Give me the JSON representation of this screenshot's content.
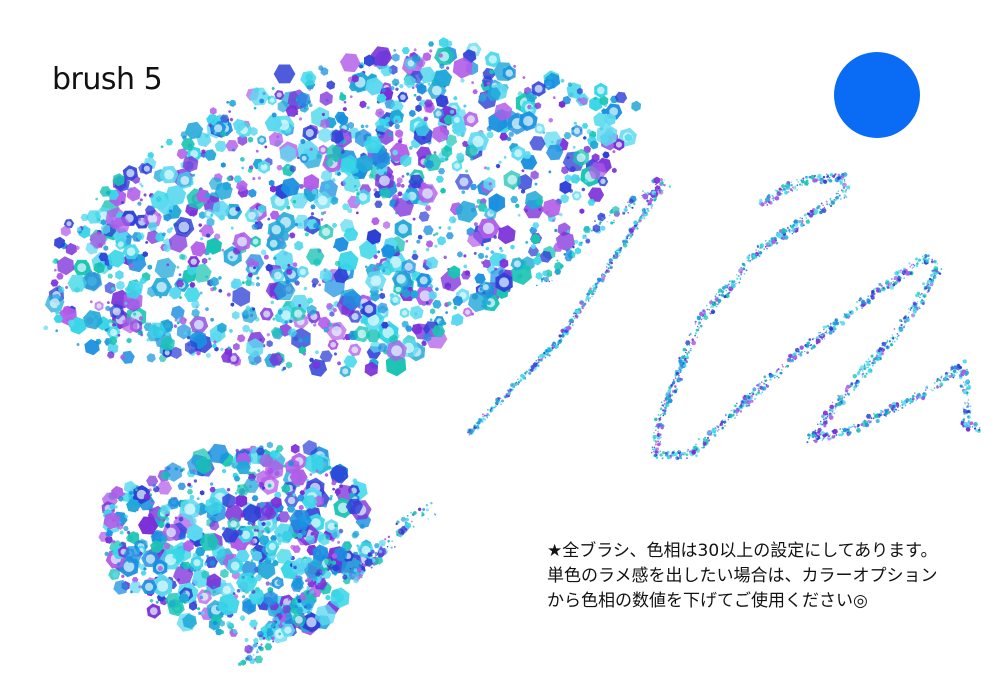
{
  "title": "brush 5",
  "note_lines": [
    "★全ブラシ、色相は30以上の設定にしてあります。",
    "単色のラメ感を出したい場合は、カラーオプション",
    "から色相の数値を下げてご使用ください◎"
  ],
  "colors": {
    "swatch": "#0a6cf5",
    "glitter": [
      "#2e3fd6",
      "#7b2fd9",
      "#19c4b4",
      "#3ad6e8",
      "#1a8fe0",
      "#b15ce8",
      "#5cd9f0",
      "#20a7d8"
    ]
  }
}
